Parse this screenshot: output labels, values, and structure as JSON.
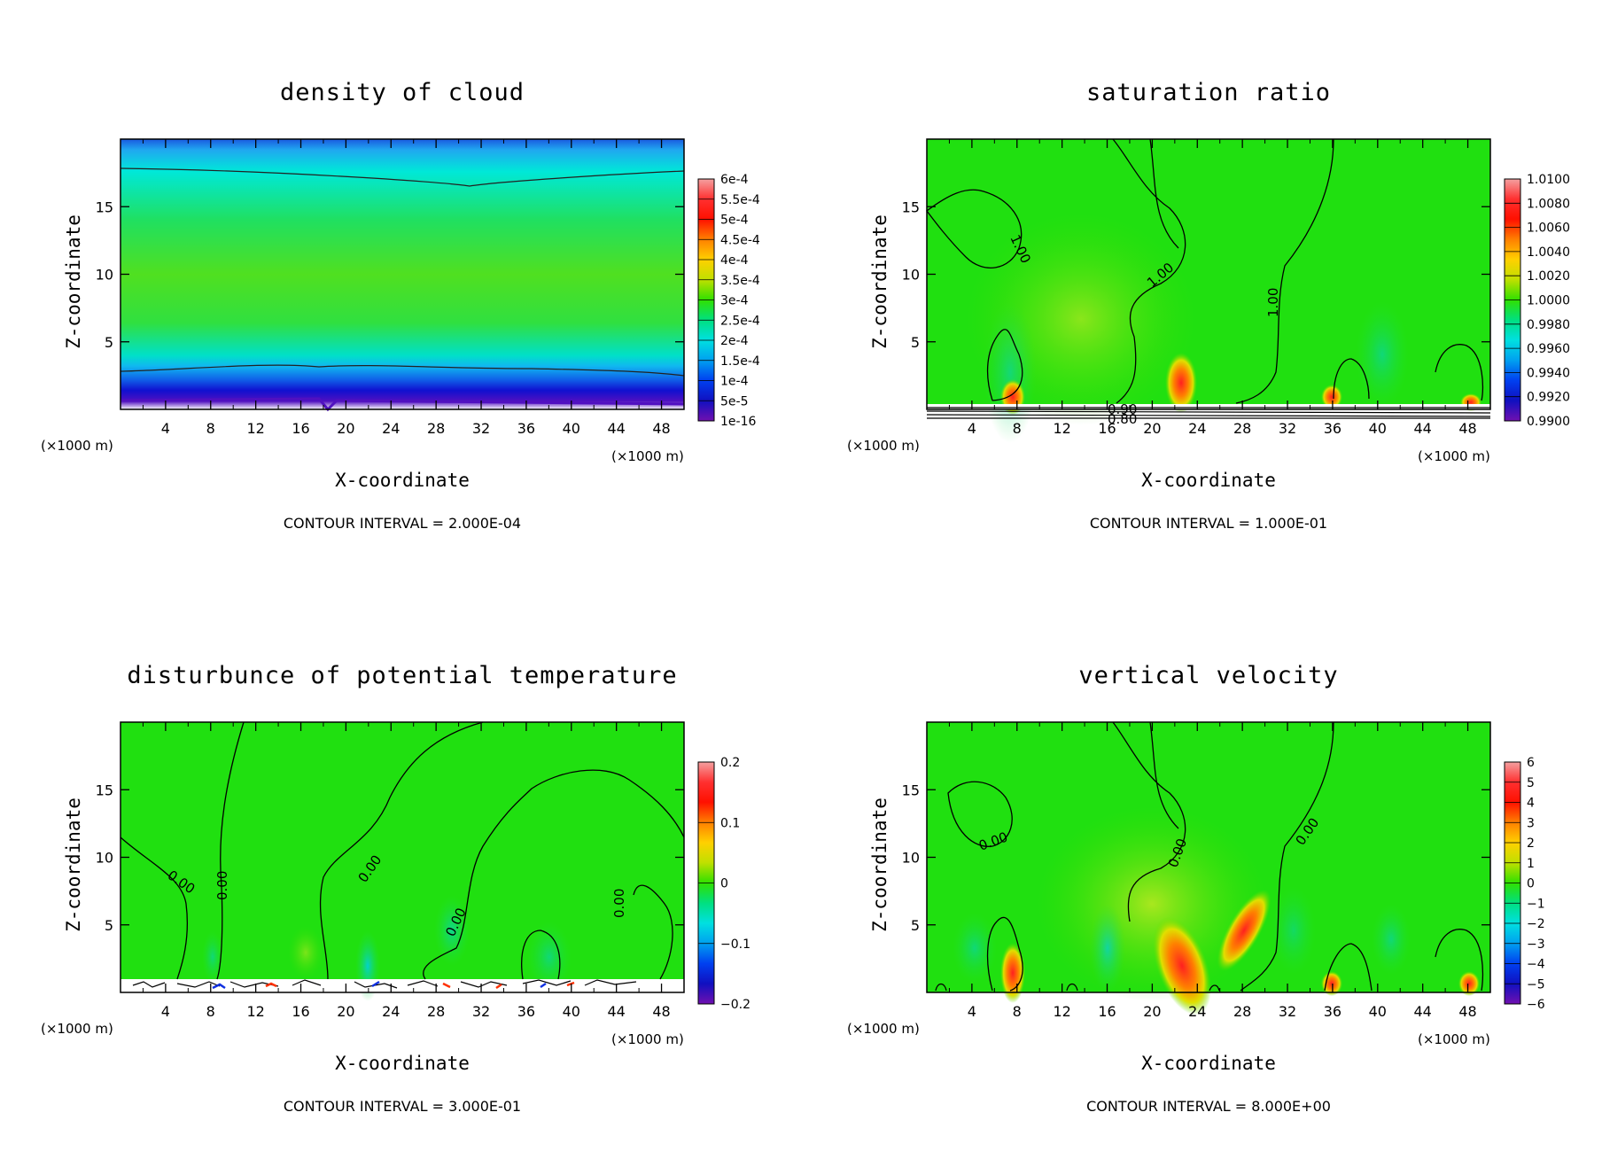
{
  "chart_data": [
    {
      "type": "heatmap",
      "title": "density of cloud",
      "xlabel": "X-coordinate",
      "ylabel": "Z-coordinate",
      "x_unit_left": "(×1000 m)",
      "x_unit_right": "(×1000 m)",
      "xlim": [
        0,
        50
      ],
      "ylim": [
        0,
        20
      ],
      "xticks": [
        "4",
        "8",
        "12",
        "16",
        "20",
        "24",
        "28",
        "32",
        "36",
        "40",
        "44",
        "48"
      ],
      "yticks": [
        "5",
        "10",
        "15"
      ],
      "colorbar_labels": [
        "6e-4",
        "5.5e-4",
        "5e-4",
        "4.5e-4",
        "4e-4",
        "3.5e-4",
        "3e-4",
        "2.5e-4",
        "2e-4",
        "1.5e-4",
        "1e-4",
        "5e-5",
        "1e-16"
      ],
      "contour_interval": "CONTOUR INTERVAL = 2.000E-04",
      "contour_labels": []
    },
    {
      "type": "heatmap",
      "title": "saturation ratio",
      "xlabel": "X-coordinate",
      "ylabel": "Z-coordinate",
      "x_unit_left": "(×1000 m)",
      "x_unit_right": "(×1000 m)",
      "xlim": [
        0,
        50
      ],
      "ylim": [
        0,
        20
      ],
      "xticks": [
        "4",
        "8",
        "12",
        "16",
        "20",
        "24",
        "28",
        "32",
        "36",
        "40",
        "44",
        "48"
      ],
      "yticks": [
        "5",
        "10",
        "15"
      ],
      "colorbar_labels": [
        "1.0100",
        "1.0080",
        "1.0060",
        "1.0040",
        "1.0020",
        "1.0000",
        "0.9980",
        "0.9960",
        "0.9940",
        "0.9920",
        "0.9900"
      ],
      "contour_interval": "CONTOUR INTERVAL = 1.000E-01",
      "contour_labels": [
        "1.00",
        "1.00",
        "1.00",
        "0.90",
        "0.80"
      ]
    },
    {
      "type": "heatmap",
      "title": "disturbunce of potential temperature",
      "xlabel": "X-coordinate",
      "ylabel": "Z-coordinate",
      "x_unit_left": "(×1000 m)",
      "x_unit_right": "(×1000 m)",
      "xlim": [
        0,
        50
      ],
      "ylim": [
        0,
        20
      ],
      "xticks": [
        "4",
        "8",
        "12",
        "16",
        "20",
        "24",
        "28",
        "32",
        "36",
        "40",
        "44",
        "48"
      ],
      "yticks": [
        "5",
        "10",
        "15"
      ],
      "colorbar_labels": [
        "0.2",
        "0.1",
        "0",
        "−0.1",
        "−0.2"
      ],
      "contour_interval": "CONTOUR INTERVAL = 3.000E-01",
      "contour_labels": [
        "0.00",
        "0.00",
        "0.00",
        "0.00",
        "0.00"
      ]
    },
    {
      "type": "heatmap",
      "title": "vertical velocity",
      "xlabel": "X-coordinate",
      "ylabel": "Z-coordinate",
      "x_unit_left": "(×1000 m)",
      "x_unit_right": "(×1000 m)",
      "xlim": [
        0,
        50
      ],
      "ylim": [
        0,
        20
      ],
      "xticks": [
        "4",
        "8",
        "12",
        "16",
        "20",
        "24",
        "28",
        "32",
        "36",
        "40",
        "44",
        "48"
      ],
      "yticks": [
        "5",
        "10",
        "15"
      ],
      "colorbar_labels": [
        "6",
        "5",
        "4",
        "3",
        "2",
        "1",
        "0",
        "−1",
        "−2",
        "−3",
        "−4",
        "−5",
        "−6"
      ],
      "contour_interval": "CONTOUR INTERVAL = 8.000E+00",
      "contour_labels": [
        "0.00",
        "0.00",
        "0.00"
      ]
    }
  ]
}
